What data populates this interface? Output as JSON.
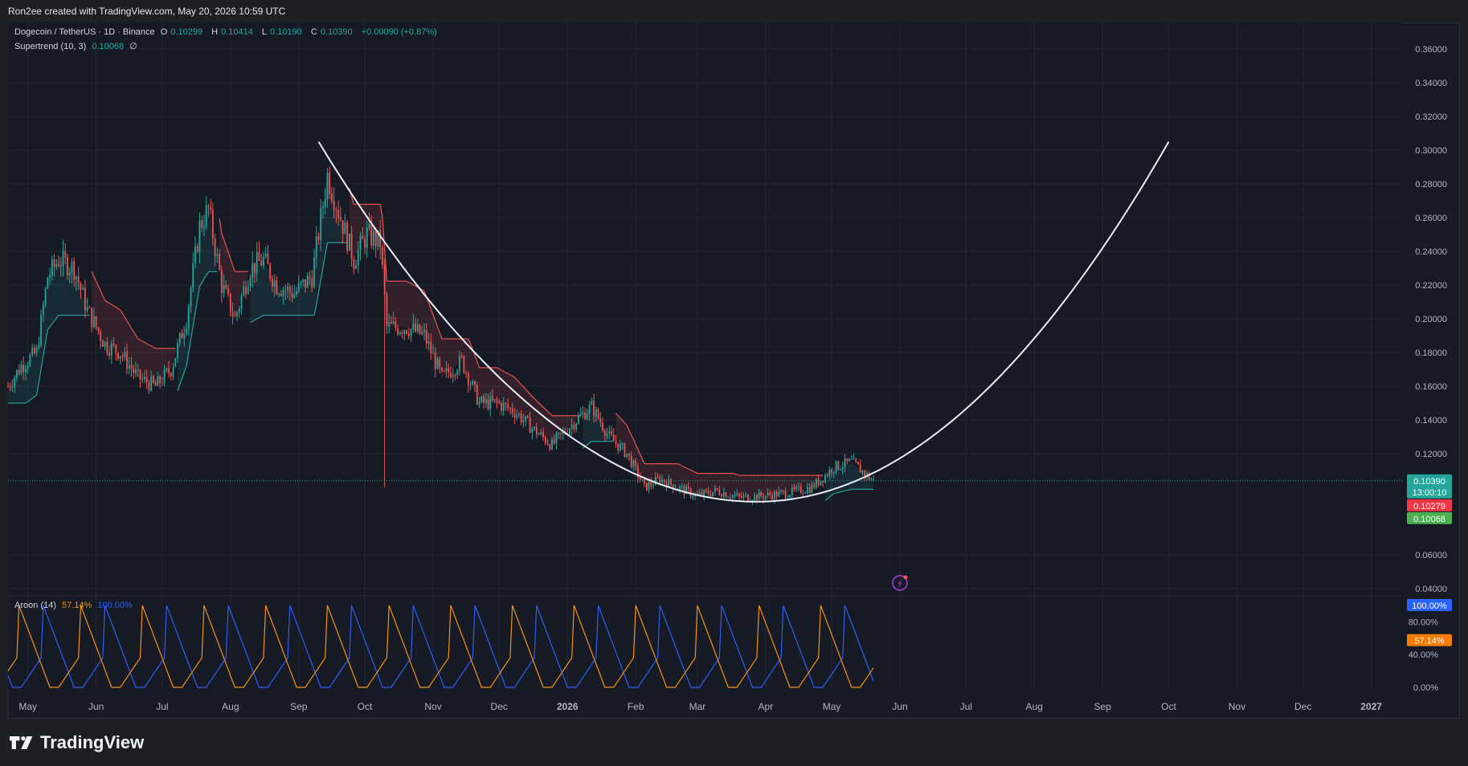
{
  "header": {
    "attribution": "Ron2ee created with TradingView.com, May 20, 2026 10:59 UTC"
  },
  "legend": {
    "symbol": "Dogecoin / TetherUS · 1D · Binance",
    "open_label": "O",
    "open": "0.10299",
    "high_label": "H",
    "high": "0.10414",
    "low_label": "L",
    "low": "0.10190",
    "close_label": "C",
    "close": "0.10390",
    "change": "+0.00090 (+0.87%)",
    "supertrend_label": "Supertrend (10, 3)",
    "supertrend_value": "0.10068",
    "supertrend_extra": "∅"
  },
  "aroon_legend": {
    "label": "Aroon (14)",
    "up": "57.14%",
    "down": "100.00%"
  },
  "price_badges": {
    "last": "0.10390",
    "countdown": "13:00:10",
    "red": "0.10279",
    "supertrend": "0.10068"
  },
  "aroon_badges": {
    "down": "100.00%",
    "up": "57.14%"
  },
  "footer": {
    "brand": "TradingView"
  },
  "colors": {
    "bg": "#161a25",
    "grid": "#232733",
    "up": "#26a69a",
    "down": "#ef5350",
    "curve": "#e8ecf7",
    "aroon_up": "#f5920f",
    "aroon_down": "#2d5ef5",
    "badge_last": "#26a69a",
    "badge_red": "#f23645",
    "badge_green": "#4caf50",
    "badge_blue": "#2962ff",
    "badge_orange": "#f57c00"
  },
  "chart_data": [
    {
      "type": "candlestick",
      "title": "Dogecoin / TetherUS · 1D · Binance",
      "y_ticks": [
        "0.36000",
        "0.34000",
        "0.32000",
        "0.30000",
        "0.28000",
        "0.26000",
        "0.24000",
        "0.22000",
        "0.20000",
        "0.18000",
        "0.16000",
        "0.14000",
        "0.12000",
        "0.06000",
        "0.04000"
      ],
      "ylim": [
        0.03,
        0.365
      ],
      "x_ticks": [
        "May",
        "Jun",
        "Jul",
        "Aug",
        "Sep",
        "Oct",
        "Nov",
        "Dec",
        "2026",
        "Feb",
        "Mar",
        "Apr",
        "May",
        "Jun",
        "Jul",
        "Aug",
        "Sep",
        "Oct",
        "Nov",
        "Dec",
        "2027"
      ],
      "x_range": [
        "2025-04-22",
        "2027-01-15"
      ],
      "price_path": [
        [
          "2025-04-22",
          0.16
        ],
        [
          "2025-04-28",
          0.172
        ],
        [
          "2025-05-05",
          0.18
        ],
        [
          "2025-05-10",
          0.225
        ],
        [
          "2025-05-15",
          0.235
        ],
        [
          "2025-05-22",
          0.23
        ],
        [
          "2025-05-28",
          0.205
        ],
        [
          "2025-06-05",
          0.185
        ],
        [
          "2025-06-12",
          0.18
        ],
        [
          "2025-06-20",
          0.165
        ],
        [
          "2025-06-28",
          0.16
        ],
        [
          "2025-07-05",
          0.17
        ],
        [
          "2025-07-12",
          0.2
        ],
        [
          "2025-07-18",
          0.255
        ],
        [
          "2025-07-22",
          0.265
        ],
        [
          "2025-07-28",
          0.22
        ],
        [
          "2025-08-03",
          0.2
        ],
        [
          "2025-08-10",
          0.23
        ],
        [
          "2025-08-16",
          0.235
        ],
        [
          "2025-08-22",
          0.22
        ],
        [
          "2025-08-30",
          0.215
        ],
        [
          "2025-09-07",
          0.225
        ],
        [
          "2025-09-14",
          0.285
        ],
        [
          "2025-09-20",
          0.26
        ],
        [
          "2025-09-26",
          0.235
        ],
        [
          "2025-10-02",
          0.25
        ],
        [
          "2025-10-08",
          0.245
        ],
        [
          "2025-10-11",
          0.195
        ],
        [
          "2025-10-20",
          0.195
        ],
        [
          "2025-10-28",
          0.19
        ],
        [
          "2025-11-05",
          0.165
        ],
        [
          "2025-11-14",
          0.175
        ],
        [
          "2025-11-22",
          0.15
        ],
        [
          "2025-11-30",
          0.15
        ],
        [
          "2025-12-08",
          0.145
        ],
        [
          "2025-12-16",
          0.135
        ],
        [
          "2025-12-25",
          0.125
        ],
        [
          "2026-01-05",
          0.14
        ],
        [
          "2026-01-12",
          0.148
        ],
        [
          "2026-01-20",
          0.13
        ],
        [
          "2026-01-28",
          0.12
        ],
        [
          "2026-02-05",
          0.1
        ],
        [
          "2026-02-12",
          0.105
        ],
        [
          "2026-02-20",
          0.1
        ],
        [
          "2026-03-01",
          0.095
        ],
        [
          "2026-03-10",
          0.098
        ],
        [
          "2026-03-20",
          0.094
        ],
        [
          "2026-04-01",
          0.095
        ],
        [
          "2026-04-12",
          0.097
        ],
        [
          "2026-04-22",
          0.1
        ],
        [
          "2026-05-02",
          0.112
        ],
        [
          "2026-05-10",
          0.115
        ],
        [
          "2026-05-20",
          0.1039
        ]
      ],
      "spike_low": [
        "2025-10-10",
        0.1
      ],
      "supertrend": {
        "label": "Supertrend (10, 3)",
        "last": 0.10068
      },
      "cup_curve": {
        "start": [
          "2025-09-10",
          0.305
        ],
        "bottom": [
          "2026-03-28",
          0.0915
        ],
        "end": [
          "2026-10-01",
          0.305
        ]
      },
      "last_price": 0.1039
    },
    {
      "type": "line",
      "title": "Aroon (14)",
      "y_ticks": [
        "0.00%",
        "40.00%",
        "80.00%"
      ],
      "ylim": [
        0,
        100
      ],
      "series": [
        {
          "name": "Aroon Up",
          "last": 57.14
        },
        {
          "name": "Aroon Down",
          "last": 100.0
        }
      ]
    }
  ]
}
